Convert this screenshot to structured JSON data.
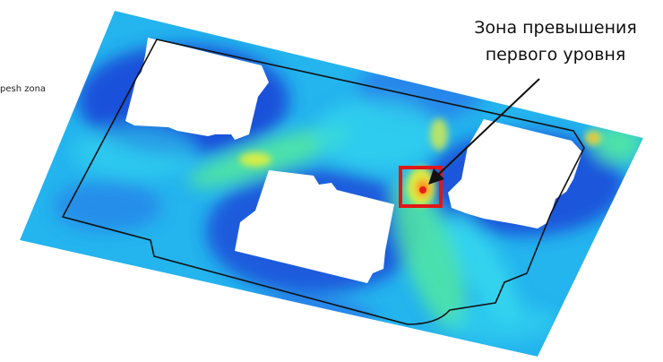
{
  "side_label": "pesh zona",
  "callout": {
    "line1": "Зона превышения",
    "line2": "первого уровня"
  },
  "colors": {
    "field_base": "#24b4ee",
    "dark_blue": "#1a3fd6",
    "mid_blue": "#2a74e8",
    "cyan": "#33d6ee",
    "green": "#52e7a2",
    "yellow": "#e4ef3c",
    "orange": "#ff8a1a",
    "red": "#e8201a",
    "highlight_box": "#e21616"
  }
}
